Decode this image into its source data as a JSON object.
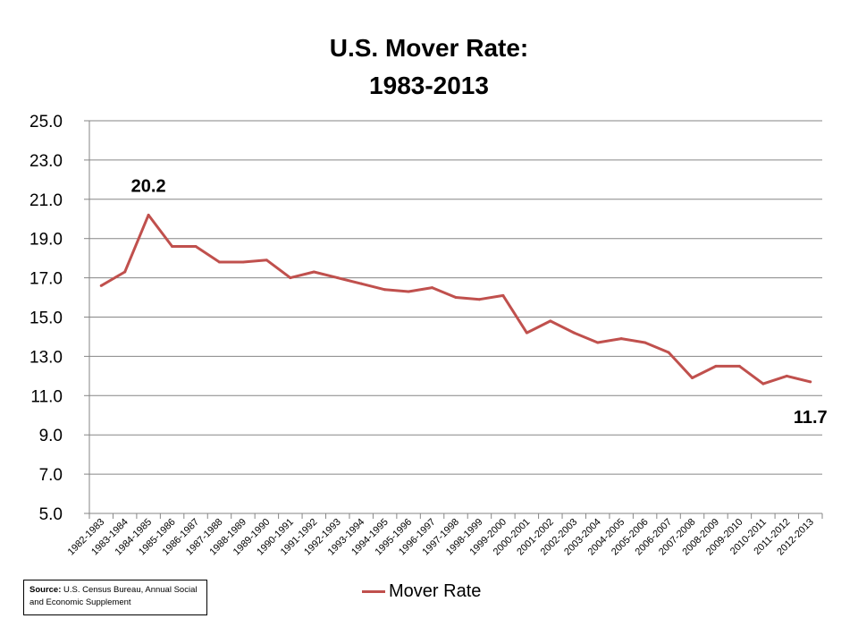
{
  "title_line1": "U.S. Mover Rate:",
  "title_line2": "1983-2013",
  "colors": {
    "series": "#C0504D",
    "grid": "#868686",
    "axis": "#868686"
  },
  "chart_data": {
    "type": "line",
    "title": "U.S. Mover Rate: 1983-2013",
    "xlabel": "",
    "ylabel": "",
    "ylim": [
      5.0,
      25.0
    ],
    "yticks": [
      "5.0",
      "7.0",
      "9.0",
      "11.0",
      "13.0",
      "15.0",
      "17.0",
      "19.0",
      "21.0",
      "23.0",
      "25.0"
    ],
    "grid": true,
    "legend": "bottom-center",
    "categories": [
      "1982-1983",
      "1983-1984",
      "1984-1985",
      "1985-1986",
      "1986-1987",
      "1987-1988",
      "1988-1989",
      "1989-1990",
      "1990-1991",
      "1991-1992",
      "1992-1993",
      "1993-1994",
      "1994-1995",
      "1995-1996",
      "1996-1997",
      "1997-1998",
      "1998-1999",
      "1999-2000",
      "2000-2001",
      "2001-2002",
      "2002-2003",
      "2003-2004",
      "2004-2005",
      "2005-2006",
      "2006-2007",
      "2007-2008",
      "2008-2009",
      "2009-2010",
      "2010-2011",
      "2011-2012",
      "2012-2013"
    ],
    "series": [
      {
        "name": "Mover Rate",
        "values": [
          16.6,
          17.3,
          20.2,
          18.6,
          18.6,
          17.8,
          17.8,
          17.9,
          17.0,
          17.3,
          17.0,
          16.7,
          16.4,
          16.3,
          16.5,
          16.0,
          15.9,
          16.1,
          14.2,
          14.8,
          14.2,
          13.7,
          13.9,
          13.7,
          13.2,
          11.9,
          12.5,
          12.5,
          11.6,
          12.0,
          11.7
        ]
      }
    ],
    "annotations": [
      {
        "index": 2,
        "text": "20.2"
      },
      {
        "index": 30,
        "text": "11.7"
      }
    ]
  },
  "legend_label": "Mover Rate",
  "source": {
    "label": "Source:",
    "text": "U.S. Census Bureau, Annual Social and Economic Supplement"
  }
}
